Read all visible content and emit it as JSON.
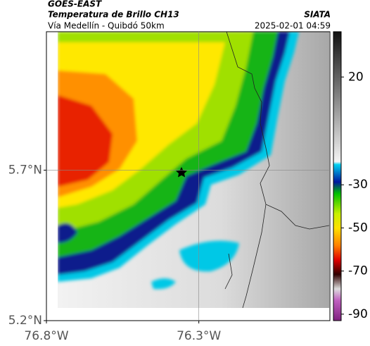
{
  "header": {
    "source": "GOES-EAST",
    "product": "Temperatura de Brillo CH13",
    "org": "SIATA",
    "region": "Vía Medellín - Quibdó 50km",
    "datetime": "2025-02-01 04:59"
  },
  "map": {
    "lat_range": [
      5.2,
      6.16
    ],
    "lon_range": [
      -76.8,
      -75.87
    ],
    "lat_ticks": [
      {
        "value": 5.7,
        "label": "5.7°N"
      },
      {
        "value": 5.2,
        "label": "5.2°N"
      }
    ],
    "lon_ticks": [
      {
        "value": -76.8,
        "label": "76.8°W"
      },
      {
        "value": -76.3,
        "label": "76.3°W"
      }
    ]
  },
  "colorbar": {
    "range": [
      -93,
      41
    ],
    "ticks": [
      20,
      -30,
      -50,
      -70,
      -90
    ]
  }
}
